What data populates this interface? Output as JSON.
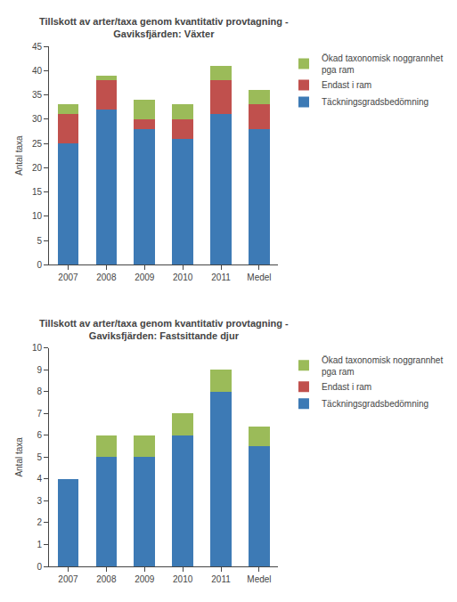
{
  "chart_data": [
    {
      "type": "bar",
      "stacked": true,
      "title": "Tillskott av arter/taxa genom kvantitativ provtagning -\nGaviksfjärden: Växter",
      "categories": [
        "2007",
        "2008",
        "2009",
        "2010",
        "2011",
        "Medel"
      ],
      "series": [
        {
          "name": "Täckningsgradsbedömning",
          "color": "#3d7ab5",
          "values": [
            25,
            32,
            28,
            26,
            31,
            28
          ]
        },
        {
          "name": "Endast i ram",
          "color": "#c0504d",
          "values": [
            6,
            6,
            2,
            4,
            7,
            5
          ]
        },
        {
          "name": "Ökad taxonomisk noggrannhet\npga ram",
          "color": "#9bbb59",
          "values": [
            2,
            1,
            4,
            3,
            3,
            3
          ]
        }
      ],
      "ylabel": "Antal taxa",
      "ylim": [
        0,
        45
      ],
      "yticks": [
        0,
        5,
        10,
        15,
        20,
        25,
        30,
        35,
        40,
        45
      ],
      "grid": false,
      "legend": "right"
    },
    {
      "type": "bar",
      "stacked": true,
      "title": "Tillskott av arter/taxa genom kvantitativ provtagning -\nGaviksfjärden: Fastsittande djur",
      "categories": [
        "2007",
        "2008",
        "2009",
        "2010",
        "2011",
        "Medel"
      ],
      "series": [
        {
          "name": "Täckningsgradsbedömning",
          "color": "#3d7ab5",
          "values": [
            4,
            5,
            5,
            6,
            8,
            5.5
          ]
        },
        {
          "name": "Endast i ram",
          "color": "#c0504d",
          "values": [
            0,
            0,
            0,
            0,
            0,
            0
          ]
        },
        {
          "name": "Ökad taxonomisk noggrannhet\npga ram",
          "color": "#9bbb59",
          "values": [
            0,
            1,
            1,
            1,
            1,
            0.9
          ]
        }
      ],
      "ylabel": "Antal taxa",
      "ylim": [
        0,
        10
      ],
      "yticks": [
        0,
        1,
        2,
        3,
        4,
        5,
        6,
        7,
        8,
        9,
        10
      ],
      "grid": false,
      "legend": "right"
    }
  ]
}
